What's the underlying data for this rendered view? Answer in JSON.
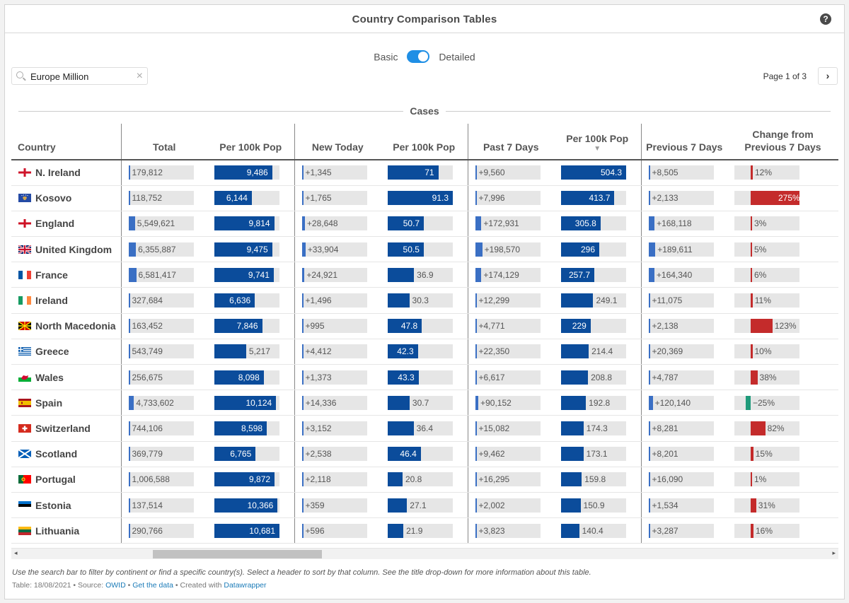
{
  "title": "Country Comparison Tables",
  "help_symbol": "?",
  "toggle": {
    "left": "Basic",
    "right": "Detailed",
    "state": "Detailed"
  },
  "search": {
    "value": "Europe Million",
    "clear_symbol": "×"
  },
  "pager": {
    "label": "Page 1 of 3",
    "next_symbol": "›"
  },
  "group_label": "Cases",
  "columns": [
    "Country",
    "Total",
    "Per 100k Pop",
    "New Today",
    "Per 100k Pop",
    "Past 7 Days",
    "Per 100k Pop",
    "Previous 7 Days",
    "Change from Previous 7 Days"
  ],
  "sort_indicator": "▼",
  "scroll": {
    "left": "◂",
    "right": "▸"
  },
  "colors": {
    "accent": "#1f8fe5",
    "bar_blue": "#0b4c9b",
    "bar_light": "#3a6fc4",
    "bar_red": "#c42b2b",
    "bar_green": "#1f9a7a",
    "bar_bg": "#e6e6e6"
  },
  "rows": [
    {
      "country": "N. Ireland",
      "flag": "n-ireland",
      "total": "179,812",
      "per100k": "9,486",
      "new_today": "+1,345",
      "new_per100k": "71",
      "past7": "+9,560",
      "past7_per100k": "504.3",
      "prev7": "+8,505",
      "change": "12%"
    },
    {
      "country": "Kosovo",
      "flag": "kosovo",
      "total": "118,752",
      "per100k": "6,144",
      "new_today": "+1,765",
      "new_per100k": "91.3",
      "past7": "+7,996",
      "past7_per100k": "413.7",
      "prev7": "+2,133",
      "change": "275%"
    },
    {
      "country": "England",
      "flag": "england",
      "total": "5,549,621",
      "per100k": "9,814",
      "new_today": "+28,648",
      "new_per100k": "50.7",
      "past7": "+172,931",
      "past7_per100k": "305.8",
      "prev7": "+168,118",
      "change": "3%"
    },
    {
      "country": "United Kingdom",
      "flag": "uk",
      "total": "6,355,887",
      "per100k": "9,475",
      "new_today": "+33,904",
      "new_per100k": "50.5",
      "past7": "+198,570",
      "past7_per100k": "296",
      "prev7": "+189,611",
      "change": "5%"
    },
    {
      "country": "France",
      "flag": "france",
      "total": "6,581,417",
      "per100k": "9,741",
      "new_today": "+24,921",
      "new_per100k": "36.9",
      "past7": "+174,129",
      "past7_per100k": "257.7",
      "prev7": "+164,340",
      "change": "6%"
    },
    {
      "country": "Ireland",
      "flag": "ireland",
      "total": "327,684",
      "per100k": "6,636",
      "new_today": "+1,496",
      "new_per100k": "30.3",
      "past7": "+12,299",
      "past7_per100k": "249.1",
      "prev7": "+11,075",
      "change": "11%"
    },
    {
      "country": "North Macedonia",
      "flag": "n-macedonia",
      "total": "163,452",
      "per100k": "7,846",
      "new_today": "+995",
      "new_per100k": "47.8",
      "past7": "+4,771",
      "past7_per100k": "229",
      "prev7": "+2,138",
      "change": "123%"
    },
    {
      "country": "Greece",
      "flag": "greece",
      "total": "543,749",
      "per100k": "5,217",
      "new_today": "+4,412",
      "new_per100k": "42.3",
      "past7": "+22,350",
      "past7_per100k": "214.4",
      "prev7": "+20,369",
      "change": "10%"
    },
    {
      "country": "Wales",
      "flag": "wales",
      "total": "256,675",
      "per100k": "8,098",
      "new_today": "+1,373",
      "new_per100k": "43.3",
      "past7": "+6,617",
      "past7_per100k": "208.8",
      "prev7": "+4,787",
      "change": "38%"
    },
    {
      "country": "Spain",
      "flag": "spain",
      "total": "4,733,602",
      "per100k": "10,124",
      "new_today": "+14,336",
      "new_per100k": "30.7",
      "past7": "+90,152",
      "past7_per100k": "192.8",
      "prev7": "+120,140",
      "change": "−25%"
    },
    {
      "country": "Switzerland",
      "flag": "switzerland",
      "total": "744,106",
      "per100k": "8,598",
      "new_today": "+3,152",
      "new_per100k": "36.4",
      "past7": "+15,082",
      "past7_per100k": "174.3",
      "prev7": "+8,281",
      "change": "82%"
    },
    {
      "country": "Scotland",
      "flag": "scotland",
      "total": "369,779",
      "per100k": "6,765",
      "new_today": "+2,538",
      "new_per100k": "46.4",
      "past7": "+9,462",
      "past7_per100k": "173.1",
      "prev7": "+8,201",
      "change": "15%"
    },
    {
      "country": "Portugal",
      "flag": "portugal",
      "total": "1,006,588",
      "per100k": "9,872",
      "new_today": "+2,118",
      "new_per100k": "20.8",
      "past7": "+16,295",
      "past7_per100k": "159.8",
      "prev7": "+16,090",
      "change": "1%"
    },
    {
      "country": "Estonia",
      "flag": "estonia",
      "total": "137,514",
      "per100k": "10,366",
      "new_today": "+359",
      "new_per100k": "27.1",
      "past7": "+2,002",
      "past7_per100k": "150.9",
      "prev7": "+1,534",
      "change": "31%"
    },
    {
      "country": "Lithuania",
      "flag": "lithuania",
      "total": "290,766",
      "per100k": "10,681",
      "new_today": "+596",
      "new_per100k": "21.9",
      "past7": "+3,823",
      "past7_per100k": "140.4",
      "prev7": "+3,287",
      "change": "16%"
    }
  ],
  "chart_data": {
    "type": "table",
    "title": "Country Comparison Tables",
    "group": "Cases",
    "columns": [
      "Country",
      "Total",
      "Per 100k Pop",
      "New Today",
      "Per 100k Pop",
      "Past 7 Days",
      "Per 100k Pop",
      "Previous 7 Days",
      "Change from Previous 7 Days"
    ],
    "sorted_by": "Past 7 Days Per 100k Pop (descending)",
    "values": {
      "total": [
        179812,
        118752,
        5549621,
        6355887,
        6581417,
        327684,
        163452,
        543749,
        256675,
        4733602,
        744106,
        369779,
        1006588,
        137514,
        290766
      ],
      "per100k": [
        9486,
        6144,
        9814,
        9475,
        9741,
        6636,
        7846,
        5217,
        8098,
        10124,
        8598,
        6765,
        9872,
        10366,
        10681
      ],
      "new_today": [
        1345,
        1765,
        28648,
        33904,
        24921,
        1496,
        995,
        4412,
        1373,
        14336,
        3152,
        2538,
        2118,
        359,
        596
      ],
      "new_per100k": [
        71,
        91.3,
        50.7,
        50.5,
        36.9,
        30.3,
        47.8,
        42.3,
        43.3,
        30.7,
        36.4,
        46.4,
        20.8,
        27.1,
        21.9
      ],
      "past7": [
        9560,
        7996,
        172931,
        198570,
        174129,
        12299,
        4771,
        22350,
        6617,
        90152,
        15082,
        9462,
        16295,
        2002,
        3823
      ],
      "past7_per100k": [
        504.3,
        413.7,
        305.8,
        296,
        257.7,
        249.1,
        229,
        214.4,
        208.8,
        192.8,
        174.3,
        173.1,
        159.8,
        150.9,
        140.4
      ],
      "prev7": [
        8505,
        2133,
        168118,
        189611,
        164340,
        11075,
        2138,
        20369,
        4787,
        120140,
        8281,
        8201,
        16090,
        1534,
        3287
      ],
      "change_pct": [
        12,
        275,
        3,
        5,
        6,
        11,
        123,
        10,
        38,
        -25,
        82,
        15,
        1,
        31,
        16
      ]
    }
  },
  "notes": "Use the search bar to filter by continent or find a specific country(s). Select a header to sort by that column. See the title drop-down for more information about this table.",
  "footer": {
    "prefix": "Table: 18/08/2021 • Source: ",
    "source_link": "OWID",
    "sep1": " • ",
    "data_link": "Get the data",
    "sep2": " • Created with ",
    "tool_link": "Datawrapper"
  }
}
